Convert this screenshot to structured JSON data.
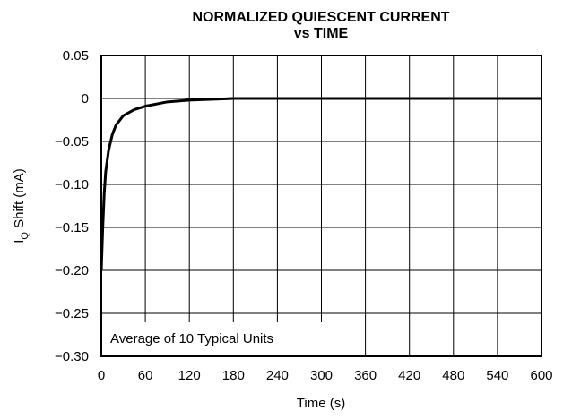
{
  "chart_data": {
    "type": "line",
    "title": [
      "NORMALIZED QUIESCENT CURRENT",
      "vs TIME"
    ],
    "x_label": "Time (s)",
    "y_label": {
      "main": "I",
      "sub": "Q",
      "rest": " Shift (mA)"
    },
    "annotation": "Average of 10 Typical Units",
    "x": [
      0,
      2,
      4,
      6,
      10,
      15,
      20,
      30,
      45,
      60,
      90,
      120,
      180,
      600
    ],
    "series": [
      {
        "name": "IQ Shift",
        "color": "#000000",
        "values": [
          -0.2,
          -0.15,
          -0.11,
          -0.085,
          -0.06,
          -0.042,
          -0.031,
          -0.02,
          -0.013,
          -0.009,
          -0.004,
          -0.002,
          0,
          0
        ]
      }
    ],
    "xlim": [
      0,
      600
    ],
    "xticks": [
      0,
      60,
      120,
      180,
      240,
      300,
      360,
      420,
      480,
      540,
      600
    ],
    "ylim": [
      -0.3,
      0.05
    ],
    "yticks": [
      {
        "value": -0.3,
        "label": "−0.30"
      },
      {
        "value": -0.25,
        "label": "−0.25"
      },
      {
        "value": -0.2,
        "label": "−0.20"
      },
      {
        "value": -0.15,
        "label": "−0.15"
      },
      {
        "value": -0.1,
        "label": "−0.10"
      },
      {
        "value": -0.05,
        "label": "−0.05"
      },
      0,
      0.05
    ],
    "grid": true
  }
}
